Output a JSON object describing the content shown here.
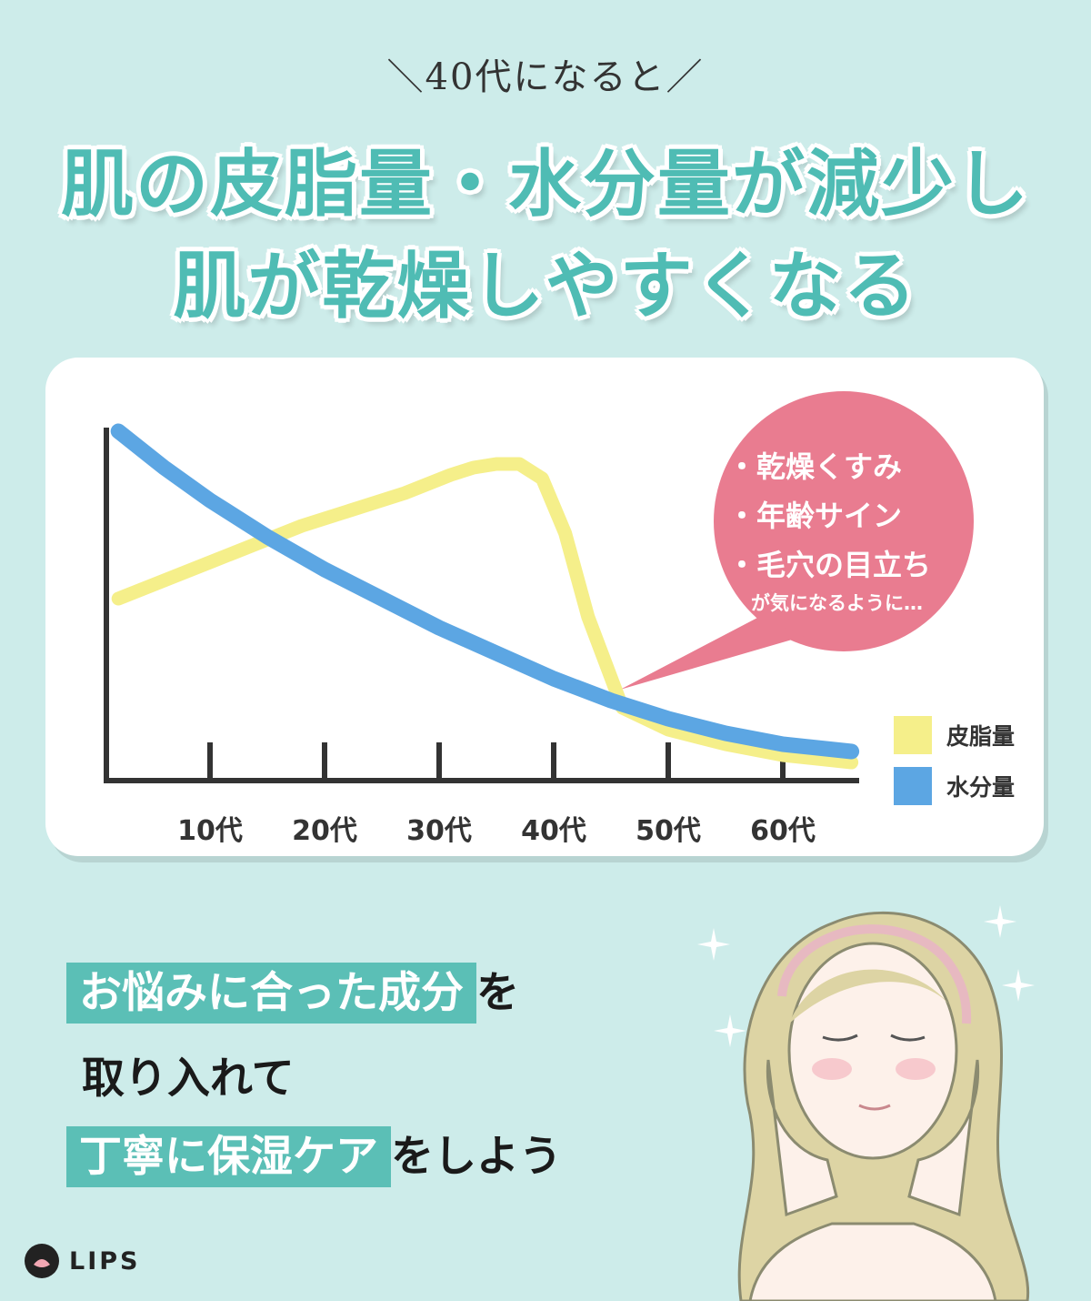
{
  "header": {
    "subtitle": "＼40代になると／",
    "headline_line1": "肌の皮脂量・水分量が減少し",
    "headline_line2": "肌が乾燥しやすくなる"
  },
  "chart_data": {
    "type": "line",
    "categories": [
      "10代",
      "20代",
      "30代",
      "40代",
      "50代",
      "60代"
    ],
    "series": [
      {
        "name": "皮脂量",
        "color": "#f5ef8a",
        "x": [
          0.2,
          1.0,
          1.8,
          2.3,
          2.7,
          3.1,
          3.3,
          3.5,
          3.7,
          3.9,
          4.1,
          4.3,
          4.6,
          5.0,
          5.5,
          6.0,
          6.6
        ],
        "values": [
          0.5,
          0.6,
          0.7,
          0.75,
          0.79,
          0.84,
          0.86,
          0.87,
          0.87,
          0.83,
          0.68,
          0.45,
          0.2,
          0.14,
          0.1,
          0.07,
          0.05
        ]
      },
      {
        "name": "水分量",
        "color": "#5ca6e3",
        "x": [
          0.2,
          0.6,
          1.0,
          1.5,
          2.0,
          2.5,
          3.0,
          3.5,
          4.0,
          4.5,
          5.0,
          5.5,
          6.0,
          6.6
        ],
        "values": [
          0.96,
          0.86,
          0.77,
          0.67,
          0.58,
          0.5,
          0.42,
          0.35,
          0.28,
          0.22,
          0.17,
          0.13,
          0.1,
          0.08
        ]
      }
    ],
    "xlabel": "",
    "ylabel": "",
    "legend": "right",
    "annotation": {
      "items": [
        "・乾燥くすみ",
        "・年齢サイン",
        "・毛穴の目立ち"
      ],
      "note": "が気になるように…",
      "color": "#e97c90"
    }
  },
  "message": {
    "line1_highlight": "お悩みに合った成分",
    "line1_rest": "を",
    "line2": "取り入れて",
    "line3_highlight": "丁寧に保湿ケア",
    "line3_rest": "をしよう"
  },
  "logo": {
    "text": "LIPS"
  }
}
